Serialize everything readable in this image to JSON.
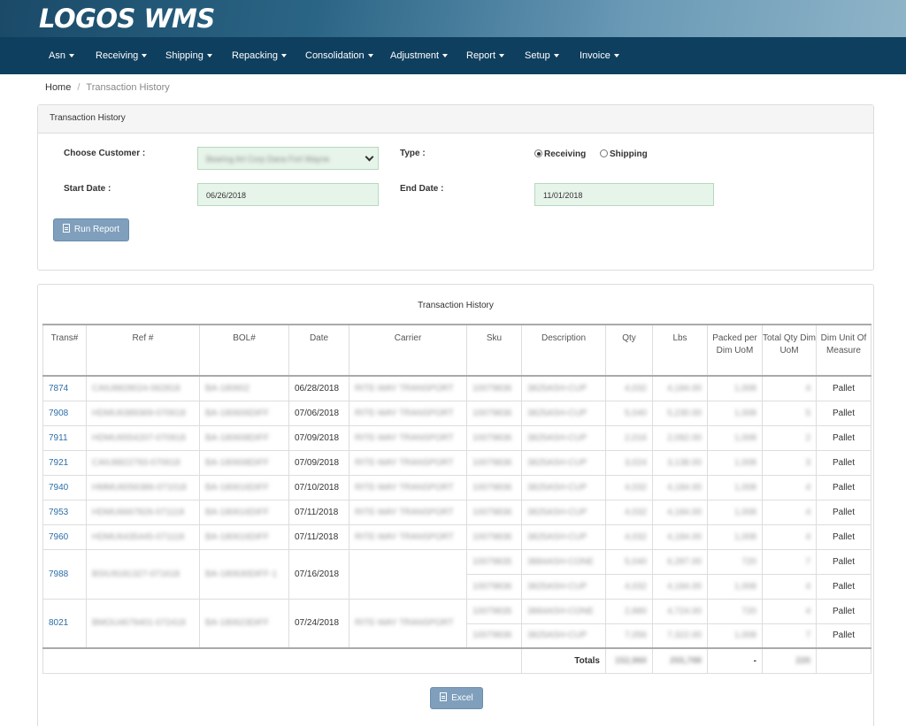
{
  "app": {
    "logo": "LOGOS WMS"
  },
  "nav": [
    {
      "label": "Asn"
    },
    {
      "label": "Receiving"
    },
    {
      "label": "Shipping"
    },
    {
      "label": "Repacking"
    },
    {
      "label": "Consolidation"
    },
    {
      "label": "Adjustment"
    },
    {
      "label": "Report"
    },
    {
      "label": "Setup"
    },
    {
      "label": "Invoice"
    }
  ],
  "breadcrumb": {
    "home": "Home",
    "current": "Transaction History"
  },
  "filter": {
    "panel_title": "Transaction History",
    "customer_label": "Choose Customer :",
    "customer_value": "Bearing Art Corp Dana Fort Wayne",
    "type_label": "Type :",
    "type_options": [
      "Receiving",
      "Shipping"
    ],
    "type_selected": "Receiving",
    "start_label": "Start Date :",
    "start_value": "06/26/2018",
    "end_label": "End Date :",
    "end_value": "11/01/2018",
    "run_button": "Run Report"
  },
  "report": {
    "title": "Transaction History",
    "columns": [
      "Trans#",
      "Ref #",
      "BOL#",
      "Date",
      "Carrier",
      "Sku",
      "Description",
      "Qty",
      "Lbs",
      "Packed per Dim UoM",
      "Total Qty Dim UoM",
      "Dim Unit Of Measure"
    ],
    "rows": [
      {
        "trans": "7874",
        "ref": "CAIU8828024-062818",
        "bol": "BA-180602",
        "date": "06/28/2018",
        "carrier": "RITE-WAY TRANSPORT",
        "sku": "10079836",
        "desc": "3825ASH-CUP",
        "qty": "4,032",
        "lbs": "4,184.00",
        "packed": "1,008",
        "total": "4",
        "uom": "Pallet"
      },
      {
        "trans": "7908",
        "ref": "HDMU6389369-070618",
        "bol": "BA-180606DIFF",
        "date": "07/06/2018",
        "carrier": "RITE-WAY TRANSPORT",
        "sku": "10079836",
        "desc": "3825ASH-CUP",
        "qty": "5,040",
        "lbs": "5,230.00",
        "packed": "1,008",
        "total": "5",
        "uom": "Pallet"
      },
      {
        "trans": "7911",
        "ref": "HDMU6554207-070918",
        "bol": "BA-180608DIFF",
        "date": "07/09/2018",
        "carrier": "RITE-WAY TRANSPORT",
        "sku": "10079836",
        "desc": "3825ASH-CUP",
        "qty": "2,016",
        "lbs": "2,092.00",
        "packed": "1,008",
        "total": "2",
        "uom": "Pallet"
      },
      {
        "trans": "7921",
        "ref": "CAIU8822793-070618",
        "bol": "BA-180608DIFF",
        "date": "07/09/2018",
        "carrier": "RITE-WAY TRANSPORT",
        "sku": "10079836",
        "desc": "3825ASH-CUP",
        "qty": "3,024",
        "lbs": "3,138.00",
        "packed": "1,008",
        "total": "3",
        "uom": "Pallet"
      },
      {
        "trans": "7940",
        "ref": "HMMU6056386-071018",
        "bol": "BA-180616DIFF",
        "date": "07/10/2018",
        "carrier": "RITE-WAY TRANSPORT",
        "sku": "10079836",
        "desc": "3825ASH-CUP",
        "qty": "4,032",
        "lbs": "4,184.00",
        "packed": "1,008",
        "total": "4",
        "uom": "Pallet"
      },
      {
        "trans": "7953",
        "ref": "HDMU6667826-071118",
        "bol": "BA-180616DIFF",
        "date": "07/11/2018",
        "carrier": "RITE-WAY TRANSPORT",
        "sku": "10079836",
        "desc": "3825ASH-CUP",
        "qty": "4,032",
        "lbs": "4,184.00",
        "packed": "1,008",
        "total": "4",
        "uom": "Pallet"
      },
      {
        "trans": "7960",
        "ref": "HDMU6435445-071118",
        "bol": "BA-180616DIFF",
        "date": "07/11/2018",
        "carrier": "RITE-WAY TRANSPORT",
        "sku": "10079836",
        "desc": "3825ASH-CUP",
        "qty": "4,032",
        "lbs": "4,184.00",
        "packed": "1,008",
        "total": "4",
        "uom": "Pallet"
      },
      {
        "trans": "7988",
        "ref": "BSIU9181327-071618",
        "bol": "BA-180630DIFF-1",
        "date": "07/16/2018",
        "carrier": "",
        "sku": "10079835",
        "desc": "3884ASH-CONE",
        "qty": "5,040",
        "lbs": "6,287.00",
        "packed": "720",
        "total": "7",
        "uom": "Pallet"
      },
      {
        "trans": "",
        "ref": "",
        "bol": "",
        "date": "",
        "carrier": "",
        "sku": "10079836",
        "desc": "3825ASH-CUP",
        "qty": "4,032",
        "lbs": "4,184.00",
        "packed": "1,008",
        "total": "4",
        "uom": "Pallet"
      },
      {
        "trans": "8021",
        "ref": "BMOU4679401-072418",
        "bol": "BA-180623DIFF",
        "date": "07/24/2018",
        "carrier": "RITE-WAY TRANSPORT",
        "sku": "10079835",
        "desc": "3884ASH-CONE",
        "qty": "2,880",
        "lbs": "4,724.00",
        "packed": "720",
        "total": "4",
        "uom": "Pallet"
      },
      {
        "trans": "",
        "ref": "",
        "bol": "",
        "date": "",
        "carrier": "",
        "sku": "10079836",
        "desc": "3825ASH-CUP",
        "qty": "7,056",
        "lbs": "7,322.00",
        "packed": "1,008",
        "total": "7",
        "uom": "Pallet"
      }
    ],
    "totals": {
      "label": "Totals",
      "qty": "152,960",
      "lbs": "255,788",
      "packed": "-",
      "total": "220"
    },
    "excel_button": "Excel"
  }
}
